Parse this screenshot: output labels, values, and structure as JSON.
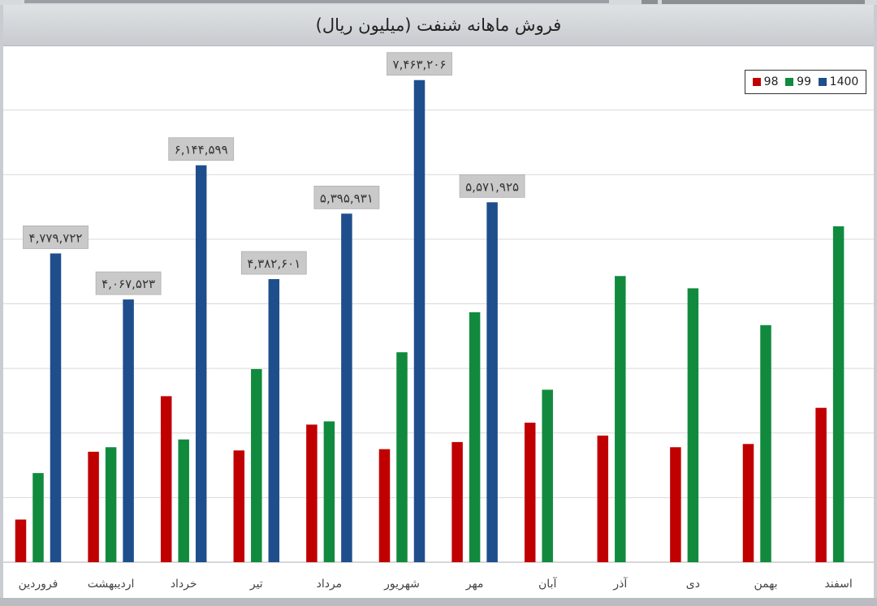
{
  "chart_data": {
    "type": "bar",
    "title": "فروش ماهانه شنفت (میلیون ریال)",
    "categories": [
      "فروردین",
      "اردیبهشت",
      "خرداد",
      "تیر",
      "مرداد",
      "شهریور",
      "مهر",
      "آبان",
      "آذر",
      "دی",
      "بهمن",
      "اسفند"
    ],
    "series": [
      {
        "name": "98",
        "color": "#c00000",
        "values": [
          660000,
          1710000,
          2570000,
          1730000,
          2130000,
          1750000,
          1860000,
          2160000,
          1960000,
          1780000,
          1830000,
          2390000
        ]
      },
      {
        "name": "99",
        "color": "#118a3e",
        "values": [
          1380000,
          1780000,
          1900000,
          2990000,
          2180000,
          3250000,
          3870000,
          2670000,
          4430000,
          4240000,
          3670000,
          5200000
        ]
      },
      {
        "name": "1400",
        "color": "#1f4e8c",
        "values": [
          4779722,
          4067523,
          6144599,
          4382601,
          5395931,
          7463206,
          5571925,
          null,
          null,
          null,
          null,
          null
        ]
      }
    ],
    "data_labels": [
      "۴,۷۷۹,۷۲۲",
      "۴,۰۶۷,۵۲۳",
      "۶,۱۴۴,۵۹۹",
      "۴,۳۸۲,۶۰۱",
      "۵,۳۹۵,۹۳۱",
      "۷,۴۶۳,۲۰۶",
      "۵,۵۷۱,۹۲۵"
    ],
    "ylim": [
      0,
      8000000
    ],
    "grid": true,
    "legend_position": "top-right",
    "xlabel": "",
    "ylabel": ""
  }
}
